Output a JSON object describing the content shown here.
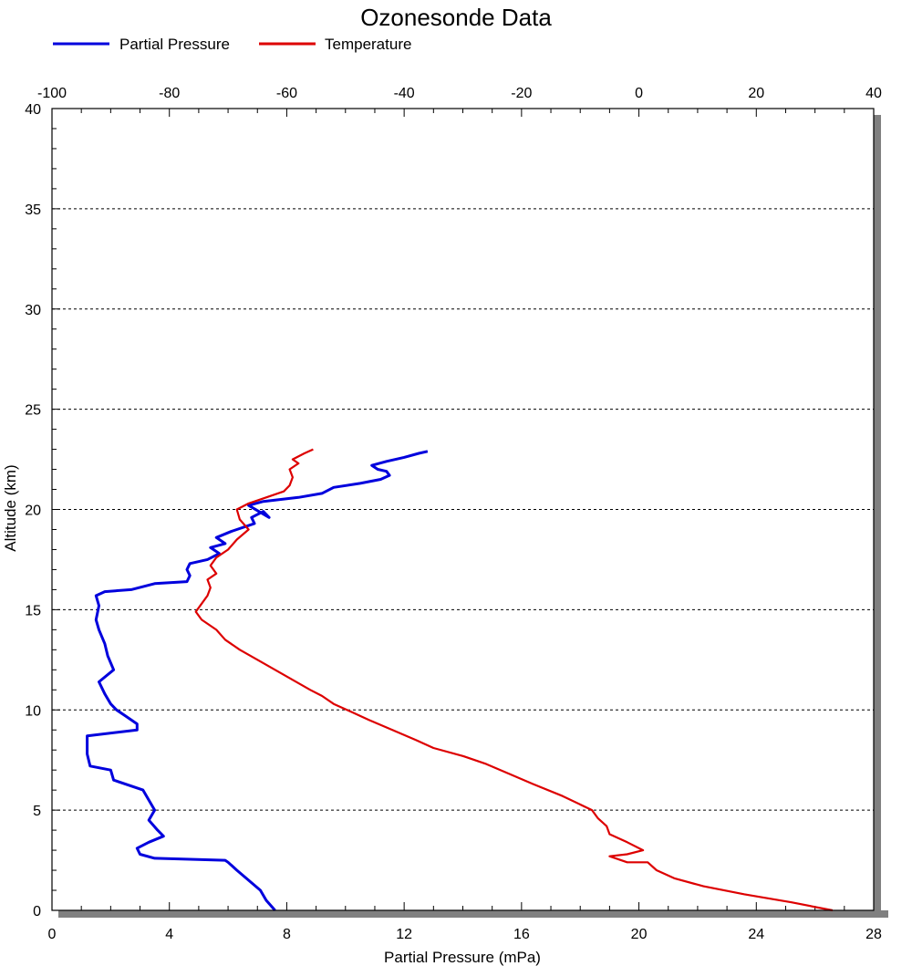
{
  "chart_data": {
    "type": "line",
    "title": "Ozonesonde Data",
    "xlabel": "Partial Pressure (mPa)",
    "ylabel": "Altitude (km)",
    "x_bottom_range": [
      0,
      28
    ],
    "x_bottom_ticks": [
      "0",
      "4",
      "8",
      "12",
      "16",
      "20",
      "24",
      "28"
    ],
    "x_top_range": [
      -100,
      40
    ],
    "x_top_ticks": [
      "-100",
      "-80",
      "-60",
      "-40",
      "-20",
      "0",
      "20",
      "40"
    ],
    "y_range": [
      0,
      40
    ],
    "y_ticks": [
      "0",
      "5",
      "10",
      "15",
      "20",
      "25",
      "30",
      "35",
      "40"
    ],
    "grid": "horizontal dashed",
    "legend_position": "top-left",
    "series": [
      {
        "name": "Partial Pressure",
        "color": "#0000dd",
        "axis": "bottom",
        "points": [
          [
            7.6,
            0.0
          ],
          [
            7.3,
            0.5
          ],
          [
            7.1,
            1.0
          ],
          [
            6.7,
            1.5
          ],
          [
            6.3,
            2.0
          ],
          [
            6.0,
            2.4
          ],
          [
            5.9,
            2.5
          ],
          [
            3.5,
            2.6
          ],
          [
            3.0,
            2.8
          ],
          [
            2.9,
            3.1
          ],
          [
            3.3,
            3.4
          ],
          [
            3.8,
            3.7
          ],
          [
            3.6,
            4.0
          ],
          [
            3.3,
            4.5
          ],
          [
            3.5,
            5.0
          ],
          [
            3.3,
            5.5
          ],
          [
            3.1,
            6.0
          ],
          [
            2.1,
            6.5
          ],
          [
            2.0,
            7.0
          ],
          [
            1.3,
            7.2
          ],
          [
            1.2,
            7.8
          ],
          [
            1.2,
            8.7
          ],
          [
            2.9,
            9.0
          ],
          [
            2.9,
            9.3
          ],
          [
            2.5,
            9.7
          ],
          [
            2.2,
            10.0
          ],
          [
            2.0,
            10.3
          ],
          [
            1.8,
            10.8
          ],
          [
            1.6,
            11.4
          ],
          [
            2.1,
            12.0
          ],
          [
            1.9,
            12.7
          ],
          [
            1.8,
            13.3
          ],
          [
            1.6,
            14.0
          ],
          [
            1.5,
            14.5
          ],
          [
            1.6,
            15.2
          ],
          [
            1.5,
            15.7
          ],
          [
            1.8,
            15.9
          ],
          [
            2.7,
            16.0
          ],
          [
            3.5,
            16.3
          ],
          [
            4.6,
            16.4
          ],
          [
            4.7,
            16.7
          ],
          [
            4.6,
            17.0
          ],
          [
            4.7,
            17.3
          ],
          [
            5.3,
            17.5
          ],
          [
            5.7,
            17.8
          ],
          [
            5.4,
            18.1
          ],
          [
            5.9,
            18.3
          ],
          [
            5.6,
            18.6
          ],
          [
            6.1,
            18.9
          ],
          [
            6.3,
            19.0
          ],
          [
            6.9,
            19.3
          ],
          [
            6.8,
            19.6
          ],
          [
            7.2,
            19.9
          ],
          [
            7.4,
            19.6
          ],
          [
            6.7,
            20.2
          ],
          [
            7.2,
            20.4
          ],
          [
            8.4,
            20.6
          ],
          [
            9.2,
            20.8
          ],
          [
            9.6,
            21.1
          ],
          [
            10.5,
            21.3
          ],
          [
            11.2,
            21.5
          ],
          [
            11.5,
            21.7
          ],
          [
            11.4,
            21.9
          ],
          [
            11.1,
            22.0
          ],
          [
            10.9,
            22.2
          ],
          [
            11.4,
            22.4
          ],
          [
            12.0,
            22.6
          ],
          [
            12.5,
            22.8
          ],
          [
            12.8,
            22.9
          ]
        ]
      },
      {
        "name": "Temperature",
        "color": "#dd0000",
        "axis": "top",
        "points": [
          [
            33.0,
            0.0
          ],
          [
            26.0,
            0.4
          ],
          [
            18.0,
            0.8
          ],
          [
            11.0,
            1.2
          ],
          [
            6.0,
            1.6
          ],
          [
            3.0,
            2.0
          ],
          [
            1.5,
            2.4
          ],
          [
            -2.0,
            2.4
          ],
          [
            -5.0,
            2.7
          ],
          [
            -2.0,
            2.8
          ],
          [
            0.7,
            3.0
          ],
          [
            -2.0,
            3.4
          ],
          [
            -5.0,
            3.8
          ],
          [
            -5.5,
            4.2
          ],
          [
            -7.0,
            4.6
          ],
          [
            -8.0,
            5.0
          ],
          [
            -13.0,
            5.7
          ],
          [
            -18.0,
            6.3
          ],
          [
            -22.0,
            6.8
          ],
          [
            -26.0,
            7.3
          ],
          [
            -30.0,
            7.7
          ],
          [
            -35.0,
            8.1
          ],
          [
            -38.0,
            8.5
          ],
          [
            -42.0,
            9.0
          ],
          [
            -46.0,
            9.5
          ],
          [
            -49.0,
            9.9
          ],
          [
            -52.0,
            10.3
          ],
          [
            -54.0,
            10.7
          ],
          [
            -56.0,
            11.0
          ],
          [
            -59.0,
            11.5
          ],
          [
            -62.0,
            12.0
          ],
          [
            -65.0,
            12.5
          ],
          [
            -68.0,
            13.0
          ],
          [
            -70.5,
            13.5
          ],
          [
            -72.0,
            14.0
          ],
          [
            -74.5,
            14.5
          ],
          [
            -75.5,
            14.9
          ],
          [
            -74.5,
            15.3
          ],
          [
            -73.5,
            15.7
          ],
          [
            -73.0,
            16.1
          ],
          [
            -73.5,
            16.5
          ],
          [
            -72.0,
            16.8
          ],
          [
            -73.0,
            17.2
          ],
          [
            -72.0,
            17.6
          ],
          [
            -70.0,
            18.0
          ],
          [
            -68.5,
            18.5
          ],
          [
            -66.5,
            19.0
          ],
          [
            -68.0,
            19.5
          ],
          [
            -68.5,
            20.0
          ],
          [
            -66.5,
            20.3
          ],
          [
            -63.5,
            20.6
          ],
          [
            -60.5,
            20.9
          ],
          [
            -59.5,
            21.2
          ],
          [
            -59.0,
            21.6
          ],
          [
            -59.5,
            22.0
          ],
          [
            -58.0,
            22.3
          ],
          [
            -59.0,
            22.5
          ],
          [
            -57.0,
            22.8
          ],
          [
            -55.5,
            23.0
          ]
        ]
      }
    ]
  }
}
